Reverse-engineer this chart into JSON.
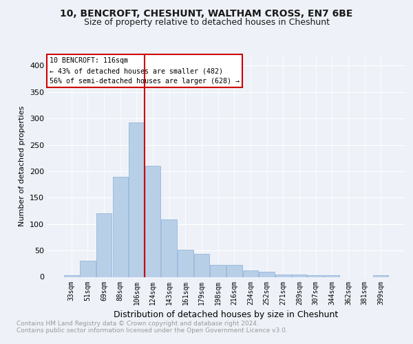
{
  "title1": "10, BENCROFT, CHESHUNT, WALTHAM CROSS, EN7 6BE",
  "title2": "Size of property relative to detached houses in Cheshunt",
  "xlabel": "Distribution of detached houses by size in Cheshunt",
  "ylabel": "Number of detached properties",
  "bar_values": [
    3,
    30,
    121,
    189,
    293,
    210,
    109,
    51,
    43,
    23,
    23,
    13,
    10,
    4,
    4,
    3,
    3,
    0,
    0,
    3
  ],
  "bar_labels": [
    "33sqm",
    "51sqm",
    "69sqm",
    "88sqm",
    "106sqm",
    "124sqm",
    "143sqm",
    "161sqm",
    "179sqm",
    "198sqm",
    "216sqm",
    "234sqm",
    "252sqm",
    "271sqm",
    "289sqm",
    "307sqm",
    "344sqm",
    "362sqm",
    "381sqm",
    "399sqm"
  ],
  "bar_color": "#b8cfe8",
  "bar_edge_color": "#8aadd4",
  "vline_color": "#cc0000",
  "annotation_title": "10 BENCROFT: 116sqm",
  "annotation_line1": "← 43% of detached houses are smaller (482)",
  "annotation_line2": "56% of semi-detached houses are larger (628) →",
  "annotation_box_color": "#ffffff",
  "annotation_box_edge_color": "#cc0000",
  "ylim": [
    0,
    420
  ],
  "yticks": [
    0,
    50,
    100,
    150,
    200,
    250,
    300,
    350,
    400
  ],
  "footnote1": "Contains HM Land Registry data © Crown copyright and database right 2024.",
  "footnote2": "Contains public sector information licensed under the Open Government Licence v3.0.",
  "bg_color": "#eef2f8",
  "plot_bg_color": "#eef2f8",
  "title_fontsize": 10,
  "subtitle_fontsize": 9,
  "ylabel_fontsize": 8,
  "xlabel_fontsize": 9,
  "tick_fontsize": 7,
  "footnote_fontsize": 6.5,
  "footnote_color": "#999999",
  "vline_x": 4.5
}
